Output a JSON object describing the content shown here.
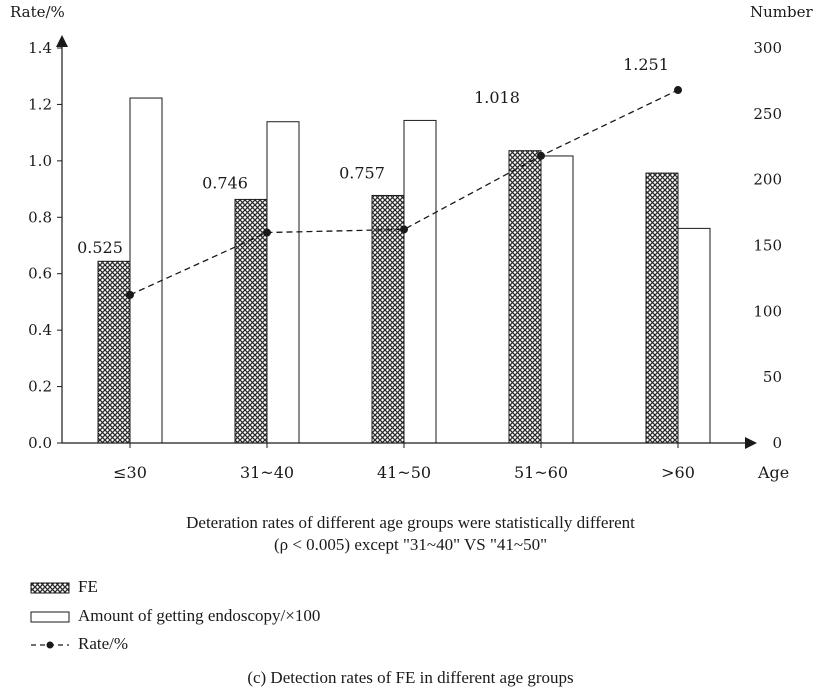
{
  "chart_data": {
    "type": "bar",
    "title": "",
    "xlabel": "Age",
    "ylabel_left": "Rate/%",
    "ylabel_right": "Number",
    "categories": [
      "≤30",
      "31~40",
      "41~50",
      "51~60",
      ">60"
    ],
    "ylim_left": [
      0,
      1.4
    ],
    "yticks_left": [
      "0.0",
      "0.2",
      "0.4",
      "0.6",
      "0.8",
      "1.0",
      "1.2",
      "1.4"
    ],
    "ylim_right": [
      0,
      300
    ],
    "yticks_right": [
      "0",
      "50",
      "100",
      "150",
      "200",
      "250",
      "300"
    ],
    "series": [
      {
        "name": "FE",
        "axis": "right",
        "type": "bar",
        "pattern": "crosshatch",
        "values": [
          138,
          185,
          188,
          222,
          205
        ]
      },
      {
        "name": "Amount of getting endoscopy/×100",
        "axis": "right",
        "type": "bar",
        "pattern": "empty",
        "values": [
          262,
          244,
          245,
          218,
          163
        ]
      },
      {
        "name": "Rate/%",
        "axis": "left",
        "type": "line",
        "style": "dashed",
        "values": [
          0.525,
          0.746,
          0.757,
          1.018,
          1.251
        ],
        "labels": [
          "0.525",
          "0.746",
          "0.757",
          "1.018",
          "1.251"
        ]
      }
    ],
    "grid": false,
    "legend_position": "bottom-left"
  },
  "note": {
    "line1": "Deteration rates of different age groups were statistically different",
    "line2": "(ρ < 0.005) except \"31~40\" VS \"41~50\""
  },
  "legend": {
    "fe": "FE",
    "amount": "Amount of getting endoscopy/×100",
    "rate": "Rate/%"
  },
  "caption": "(c) Detection rates of FE in different age groups"
}
